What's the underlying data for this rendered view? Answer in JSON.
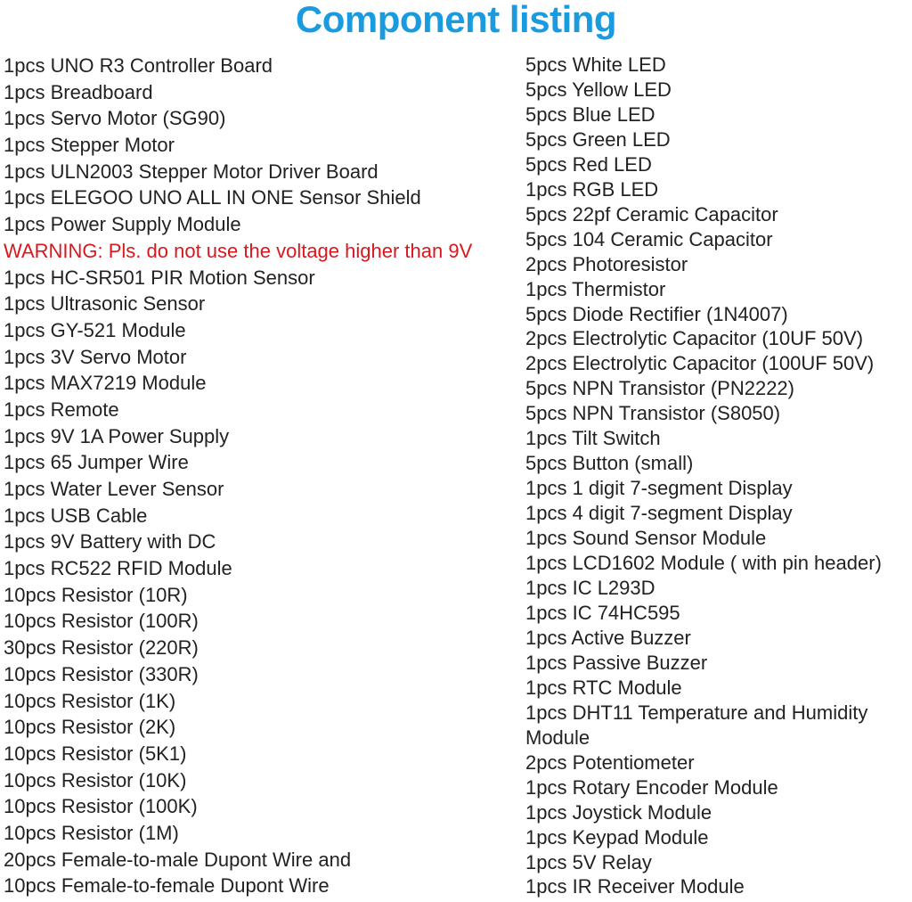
{
  "title": "Component listing",
  "colors": {
    "title": "#1a9be0",
    "warning": "#d7191f",
    "text": "#222222"
  },
  "left_items": [
    "1pcs UNO R3 Controller Board",
    "1pcs Breadboard",
    "1pcs Servo Motor (SG90)",
    "1pcs Stepper Motor",
    "1pcs ULN2003 Stepper Motor Driver Board",
    "1pcs ELEGOO UNO ALL IN ONE Sensor Shield",
    "1pcs Power Supply Module",
    "WARNING: Pls. do not use the voltage higher than 9V",
    "1pcs HC-SR501 PIR Motion Sensor",
    "1pcs Ultrasonic Sensor",
    "1pcs GY-521 Module",
    "1pcs 3V Servo Motor",
    "1pcs MAX7219 Module",
    "1pcs Remote",
    "1pcs 9V 1A Power Supply",
    "1pcs 65 Jumper Wire",
    "1pcs Water Lever Sensor",
    "1pcs USB Cable",
    "1pcs 9V Battery with DC",
    "1pcs RC522 RFID Module",
    "10pcs Resistor (10R)",
    "10pcs Resistor (100R)",
    "30pcs Resistor (220R)",
    "10pcs Resistor (330R)",
    "10pcs Resistor (1K)",
    "10pcs Resistor (2K)",
    "10pcs Resistor (5K1)",
    "10pcs Resistor (10K)",
    "10pcs Resistor (100K)",
    "10pcs Resistor (1M)",
    "20pcs Female-to-male Dupont Wire and",
    "10pcs Female-to-female Dupont Wire"
  ],
  "right_items": [
    "5pcs White LED",
    "5pcs Yellow LED",
    "5pcs Blue LED",
    "5pcs Green LED",
    "5pcs Red LED",
    "1pcs RGB LED",
    "5pcs 22pf Ceramic Capacitor",
    "5pcs 104 Ceramic Capacitor",
    "2pcs Photoresistor",
    "1pcs Thermistor",
    "5pcs Diode Rectifier (1N4007)",
    "2pcs Electrolytic Capacitor (10UF 50V)",
    "2pcs Electrolytic Capacitor (100UF 50V)",
    "5pcs NPN Transistor (PN2222)",
    "5pcs NPN Transistor (S8050)",
    "1pcs Tilt Switch",
    "5pcs Button (small)",
    "1pcs 1 digit 7-segment Display",
    "1pcs 4 digit 7-segment Display",
    "1pcs Sound Sensor Module",
    "1pcs LCD1602 Module ( with pin header)",
    "1pcs IC L293D",
    "1pcs IC 74HC595",
    "1pcs Active Buzzer",
    "1pcs Passive Buzzer",
    "1pcs RTC Module",
    "1pcs DHT11 Temperature and Humidity Module",
    "2pcs Potentiometer",
    "1pcs Rotary Encoder Module",
    "1pcs Joystick Module",
    "1pcs Keypad Module",
    "1pcs 5V Relay",
    "1pcs IR Receiver Module"
  ]
}
